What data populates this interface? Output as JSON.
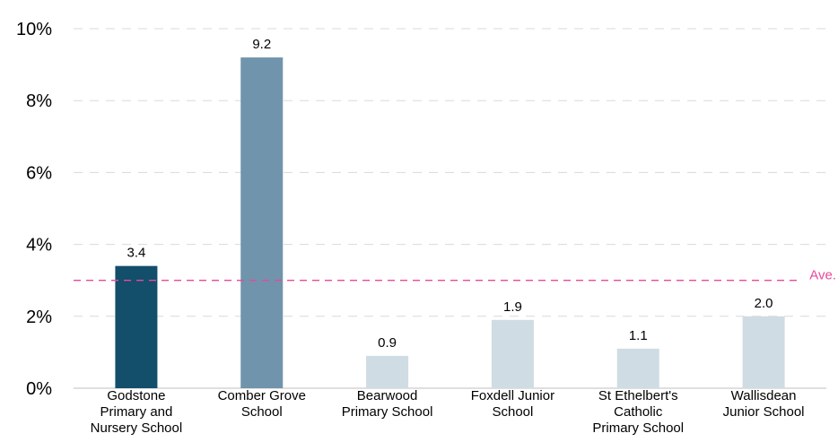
{
  "chart_data": {
    "type": "bar",
    "categories": [
      [
        "Godstone",
        "Primary and",
        "Nursery School"
      ],
      [
        "Comber Grove",
        "School"
      ],
      [
        "Bearwood",
        "Primary School"
      ],
      [
        "Foxdell Junior",
        "School"
      ],
      [
        "St Ethelbert's",
        "Catholic",
        "Primary School"
      ],
      [
        "Wallisdean",
        "Junior School"
      ]
    ],
    "values": [
      3.4,
      9.2,
      0.9,
      1.9,
      1.1,
      2.0
    ],
    "value_labels": [
      "3.4",
      "9.2",
      "0.9",
      "1.9",
      "1.1",
      "2.0"
    ],
    "bar_colors": [
      "#134e6b",
      "#7094ac",
      "#d0dce3",
      "#d0dce3",
      "#d0dce3",
      "#d0dce3"
    ],
    "ylim": [
      0,
      10
    ],
    "yticks": [
      0,
      2,
      4,
      6,
      8,
      10
    ],
    "ytick_labels": [
      "0%",
      "2%",
      "4%",
      "6%",
      "8%",
      "10%"
    ],
    "grid": true,
    "grid_color": "#d9d9d9",
    "reference_line": {
      "value": 3.0,
      "label": "Ave.",
      "color": "#e8499a"
    },
    "title": "",
    "xlabel": "",
    "ylabel": ""
  }
}
